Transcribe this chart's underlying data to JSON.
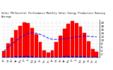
{
  "title": "Solar PV/Inverter Performance Monthly Solar Energy Production Running Average",
  "bar_values": [
    3.5,
    8.2,
    11.5,
    15.8,
    18.2,
    20.5,
    19.8,
    17.2,
    13.5,
    8.8,
    4.2,
    2.8,
    4.1,
    9.0,
    12.8,
    16.5,
    19.5,
    21.2,
    20.1,
    18.0,
    14.2,
    9.5,
    4.8,
    3.2
  ],
  "running_avg": [
    3.5,
    5.85,
    7.73,
    9.75,
    11.44,
    12.87,
    13.93,
    14.34,
    14.08,
    13.37,
    12.43,
    11.17,
    10.55,
    10.49,
    10.58,
    10.86,
    11.18,
    11.59,
    11.95,
    12.21,
    12.31,
    12.29,
    12.12,
    11.9
  ],
  "small_values": [
    0.3,
    0.5,
    0.5,
    0.7,
    0.8,
    0.9,
    0.85,
    0.7,
    0.6,
    0.45,
    0.25,
    0.2,
    0.28,
    0.45,
    0.55,
    0.72,
    0.82,
    0.92,
    0.88,
    0.72,
    0.62,
    0.48,
    0.28,
    0.22
  ],
  "bar_color": "#ff0000",
  "avg_color": "#0000ee",
  "dot_color": "#0000ee",
  "bg_color": "#ffffff",
  "title_bg": "#c0c0c0",
  "grid_color": "#aaaaaa",
  "ylim": [
    0,
    22
  ],
  "yticks": [
    2,
    4,
    6,
    8,
    10,
    12,
    14,
    16,
    18,
    20
  ],
  "ylabel_fontsize": 3.0,
  "title_fontsize": 2.5,
  "n_bars": 24
}
